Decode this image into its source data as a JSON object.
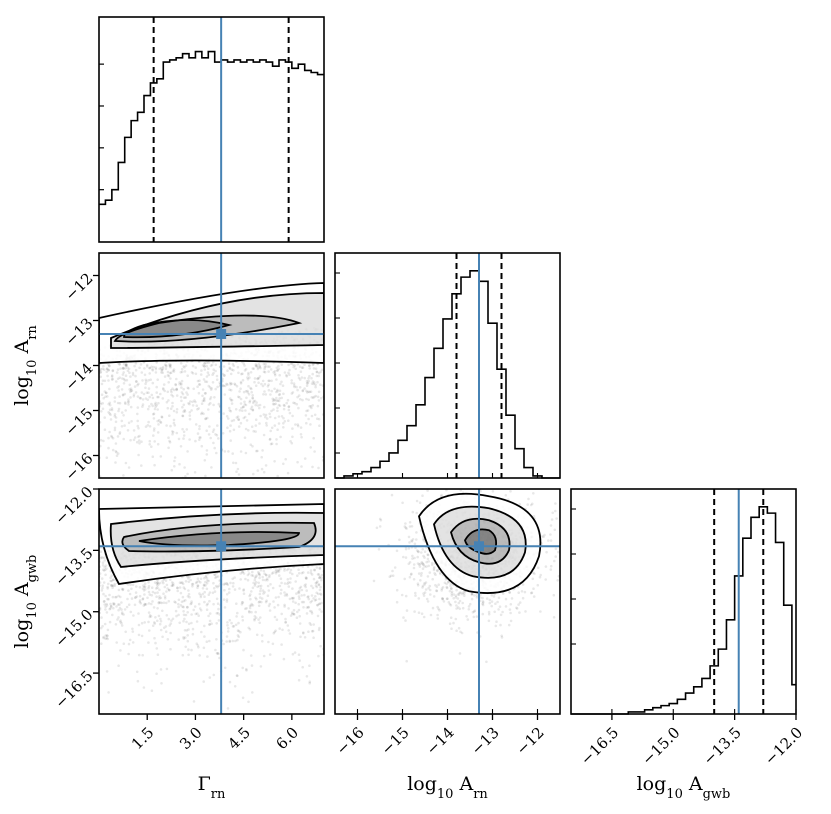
{
  "chart_data": {
    "type": "scatter",
    "kind": "corner-plot",
    "parameters": [
      {
        "key": "gamma_rn",
        "label_main": "Γ",
        "label_sub": "rn",
        "lim": [
          0.0,
          7.0
        ],
        "ticks": [
          1.5,
          3.0,
          4.5,
          6.0
        ],
        "tick_labels": [
          "1.5",
          "3.0",
          "4.5",
          "6.0"
        ],
        "truth": 3.8,
        "quantiles": [
          1.7,
          5.9
        ]
      },
      {
        "key": "log10_A_rn",
        "label_main": "log",
        "label_sub1": "10",
        "label_main2": " A",
        "label_sub": "rn",
        "lim": [
          -16.5,
          -11.5
        ],
        "ticks": [
          -16,
          -15,
          -14,
          -13,
          -12
        ],
        "tick_labels": [
          "−16",
          "−15",
          "−14",
          "−13",
          "−12"
        ],
        "truth": -13.3,
        "quantiles": [
          -13.8,
          -12.8
        ]
      },
      {
        "key": "log10_A_gwb",
        "label_main": "log",
        "label_sub1": "10",
        "label_main2": " A",
        "label_sub": "gwb",
        "lim": [
          -17.5,
          -12.0
        ],
        "ticks": [
          -16.5,
          -15.0,
          -13.5,
          -12.0
        ],
        "tick_labels": [
          "−16.5",
          "−15.0",
          "−13.5",
          "−12.0"
        ],
        "truth": -13.4,
        "quantiles": [
          -14.0,
          -12.8
        ]
      }
    ],
    "histograms": {
      "gamma_rn": {
        "bins": [
          0.0,
          0.2,
          0.4,
          0.6,
          0.8,
          1.0,
          1.2,
          1.4,
          1.6,
          1.8,
          2.0,
          2.2,
          2.4,
          2.6,
          2.8,
          3.0,
          3.2,
          3.4,
          3.6,
          3.8,
          4.0,
          4.2,
          4.4,
          4.6,
          4.8,
          5.0,
          5.2,
          5.4,
          5.6,
          5.8,
          6.0,
          6.2,
          6.4,
          6.6,
          6.8,
          7.0
        ],
        "counts": [
          0.18,
          0.2,
          0.25,
          0.38,
          0.5,
          0.58,
          0.62,
          0.7,
          0.76,
          0.78,
          0.86,
          0.87,
          0.88,
          0.9,
          0.88,
          0.91,
          0.88,
          0.91,
          0.86,
          0.87,
          0.86,
          0.87,
          0.86,
          0.87,
          0.86,
          0.87,
          0.86,
          0.84,
          0.87,
          0.86,
          0.83,
          0.85,
          0.82,
          0.81,
          0.8
        ]
      },
      "log10_A_rn": {
        "bins": [
          -16.5,
          -16.3,
          -16.1,
          -15.9,
          -15.7,
          -15.5,
          -15.3,
          -15.1,
          -14.9,
          -14.7,
          -14.5,
          -14.3,
          -14.1,
          -13.9,
          -13.7,
          -13.5,
          -13.3,
          -13.1,
          -12.9,
          -12.7,
          -12.5,
          -12.3,
          -12.1,
          -11.9,
          -11.7,
          -11.5
        ],
        "counts": [
          0.0,
          0.01,
          0.02,
          0.03,
          0.05,
          0.08,
          0.12,
          0.18,
          0.25,
          0.35,
          0.48,
          0.62,
          0.76,
          0.88,
          0.96,
          0.99,
          0.94,
          0.74,
          0.52,
          0.3,
          0.14,
          0.05,
          0.01,
          0.0,
          0.0
        ]
      },
      "log10_A_gwb": {
        "bins": [
          -17.5,
          -17.3,
          -17.1,
          -16.9,
          -16.7,
          -16.5,
          -16.3,
          -16.1,
          -15.9,
          -15.7,
          -15.5,
          -15.3,
          -15.1,
          -14.9,
          -14.7,
          -14.5,
          -14.3,
          -14.1,
          -13.9,
          -13.7,
          -13.5,
          -13.3,
          -13.1,
          -12.9,
          -12.7,
          -12.5,
          -12.3,
          -12.1,
          -12.0
        ],
        "counts": [
          0.0,
          0.0,
          0.0,
          0.0,
          0.0,
          0.0,
          0.0,
          0.01,
          0.01,
          0.02,
          0.03,
          0.04,
          0.05,
          0.07,
          0.1,
          0.13,
          0.17,
          0.23,
          0.31,
          0.45,
          0.66,
          0.84,
          0.94,
          0.99,
          0.96,
          0.82,
          0.52,
          0.14
        ]
      }
    },
    "pairs": [
      {
        "x": "gamma_rn",
        "y": "log10_A_rn",
        "truth": [
          3.8,
          -13.3
        ]
      },
      {
        "x": "gamma_rn",
        "y": "log10_A_gwb",
        "truth": [
          3.8,
          -13.4
        ]
      },
      {
        "x": "log10_A_rn",
        "y": "log10_A_gwb",
        "truth": [
          -13.3,
          -13.4
        ]
      }
    ],
    "colors": {
      "line": "#000000",
      "truth": "#4682b4",
      "density": "#000000"
    }
  }
}
